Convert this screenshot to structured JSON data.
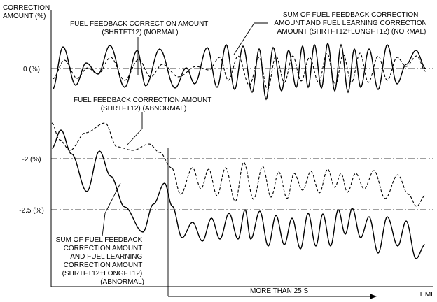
{
  "axes": {
    "y_title_line1": "CORRECTION",
    "y_title_line2": "AMOUNT (%)",
    "x_title": "TIME",
    "ref_0": "0 (%)",
    "ref_neg2": "-2 (%)",
    "ref_neg25": "-2.5 (%)"
  },
  "labels": {
    "shrt_normal": [
      "FUEL FEEDBACK CORRECTION AMOUNT",
      "(SHRTFT12) (NORMAL)"
    ],
    "sum_normal": [
      "SUM OF FUEL FEEDBACK CORRECTION",
      "AMOUNT AND FUEL LEARNING CORRECTION",
      "AMOUNT (SHRTFT12+LONGFT12) (NORMAL)"
    ],
    "shrt_abnormal": [
      "FUEL FEEDBACK CORRECTION AMOUNT",
      "(SHRTFT12) (ABNORMAL)"
    ],
    "sum_abnormal": [
      "SUM OF FUEL FEEDBACK",
      "CORRECTION AMOUNT",
      "AND FUEL LEARNING",
      "CORRECTION AMOUNT",
      "(SHRTFT12+LONGFT12)",
      "(ABNORMAL)"
    ]
  },
  "duration_label": "MORE THAN 25 S"
}
